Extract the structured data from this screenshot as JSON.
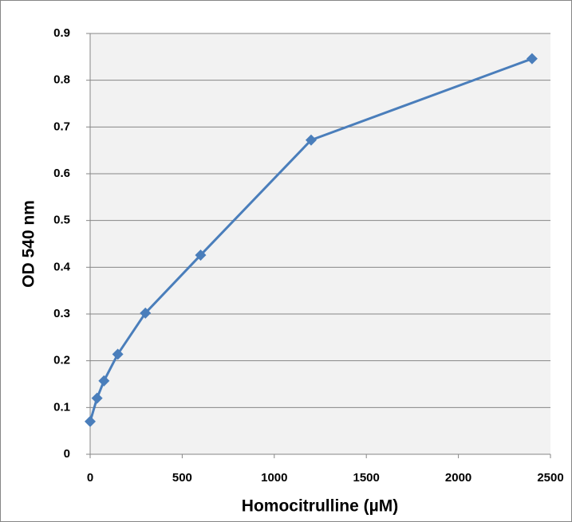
{
  "chart_data": {
    "type": "line",
    "x_label": "Homocitrulline (µM)",
    "y_label": "OD 540 nm",
    "x": [
      0,
      37.5,
      75,
      150,
      300,
      600,
      1200,
      2400
    ],
    "values": [
      0.07,
      0.12,
      0.157,
      0.214,
      0.302,
      0.426,
      0.672,
      0.846
    ],
    "color": "#4a7ebb",
    "xlim": [
      0,
      2500
    ],
    "xticks": [
      0,
      500,
      1000,
      1500,
      2000,
      2500
    ],
    "ylim": [
      0,
      0.9
    ],
    "yticks": [
      0,
      0.1,
      0.2,
      0.3,
      0.4,
      0.5,
      0.6,
      0.7,
      0.8,
      0.9
    ],
    "grid": true
  }
}
